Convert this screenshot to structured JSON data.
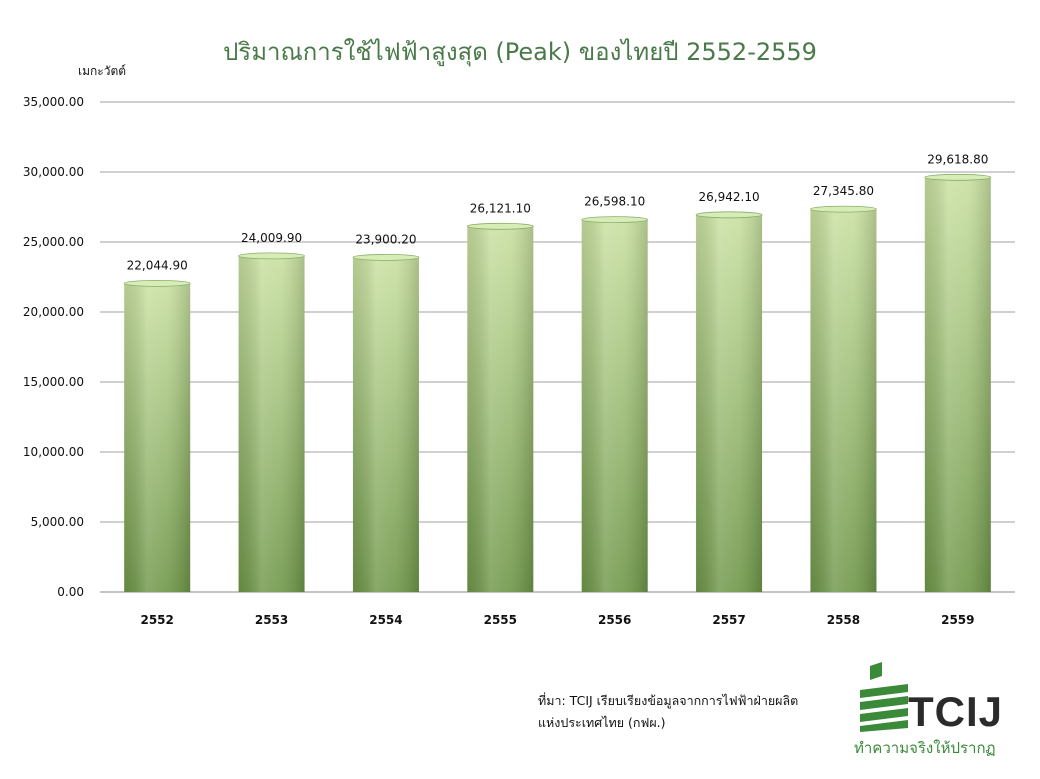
{
  "title": "ปริมาณการใช้ไฟฟ้าสูงสุด (Peak) ของไทยปี 2552-2559",
  "chart_data": {
    "type": "bar",
    "title": "ปริมาณการใช้ไฟฟ้าสูงสุด (Peak) ของไทยปี 2552-2559",
    "ylabel": "เมกะวัตต์",
    "xlabel": "",
    "categories": [
      "2552",
      "2553",
      "2554",
      "2555",
      "2556",
      "2557",
      "2558",
      "2559"
    ],
    "values": [
      22044.9,
      24009.9,
      23900.2,
      26121.1,
      26598.1,
      26942.1,
      27345.8,
      29618.8
    ],
    "value_labels": [
      "22,044.90",
      "24,009.90",
      "23,900.20",
      "26,121.10",
      "26,598.10",
      "26,942.10",
      "27,345.80",
      "29,618.80"
    ],
    "ylim": [
      0,
      35000
    ],
    "y_ticks": [
      0,
      5000,
      10000,
      15000,
      20000,
      25000,
      30000,
      35000
    ],
    "y_tick_labels": [
      "0.00",
      "5,000.00",
      "10,000.00",
      "15,000.00",
      "20,000.00",
      "25,000.00",
      "30,000.00",
      "35,000.00"
    ],
    "grid": true,
    "bar_color_top": "#c8e0a0",
    "bar_color_bottom": "#6e9648"
  },
  "source": {
    "line1": "ที่มา: TCIJ เรียบเรียงข้อมูลจากการไฟฟ้าฝ่ายผลิต",
    "line2": "แห่งประเทศไทย (กฟผ.)"
  },
  "logo": {
    "text": "TCIJ",
    "tagline": "ทำความจริงให้ปรากฏ",
    "accent_color": "#3a8a3a"
  }
}
